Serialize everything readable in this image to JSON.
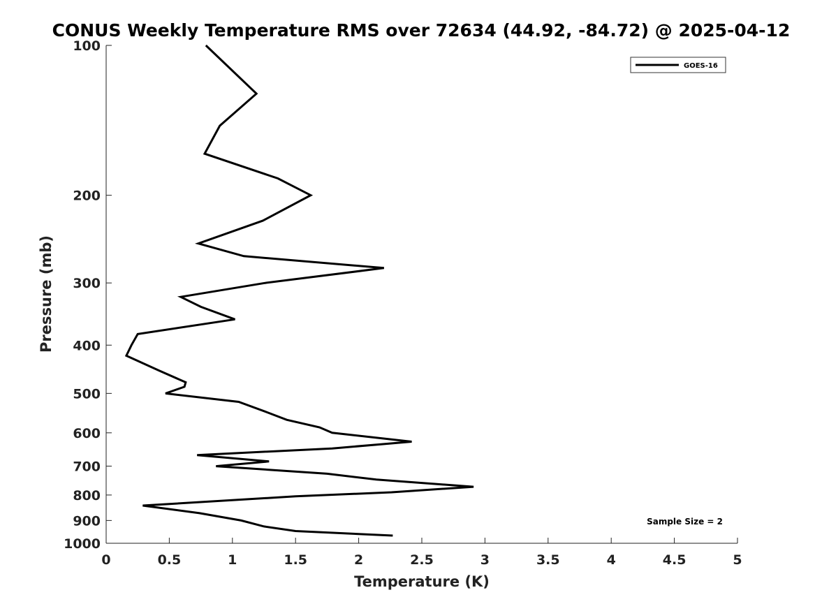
{
  "chart_data": {
    "type": "line",
    "title": "CONUS Weekly Temperature RMS over 72634 (44.92, -84.72) @ 2025-04-12",
    "xlabel": "Temperature (K)",
    "ylabel": "Pressure (mb)",
    "xlim": [
      0,
      5
    ],
    "ylim": [
      100,
      1000
    ],
    "y_scale": "log",
    "y_reversed": true,
    "x_ticks": [
      0,
      0.5,
      1,
      1.5,
      2,
      2.5,
      3,
      3.5,
      4,
      4.5,
      5
    ],
    "x_tick_labels": [
      "0",
      "0.5",
      "1",
      "1.5",
      "2",
      "2.5",
      "3",
      "3.5",
      "4",
      "4.5",
      "5"
    ],
    "y_ticks": [
      100,
      200,
      300,
      400,
      500,
      600,
      700,
      800,
      900,
      1000
    ],
    "y_tick_labels": [
      "100",
      "200",
      "300",
      "400",
      "500",
      "600",
      "700",
      "800",
      "900",
      "1000"
    ],
    "grid": false,
    "legend_position": "top-right",
    "annotation": "Sample Size = 2",
    "series": [
      {
        "name": "GOES-16",
        "color": "#000000",
        "x": [
          0.79,
          1.19,
          0.9,
          0.78,
          1.36,
          1.62,
          1.24,
          0.73,
          1.09,
          2.2,
          1.26,
          0.59,
          0.75,
          1.02,
          0.25,
          0.2,
          0.16,
          0.42,
          0.63,
          0.62,
          0.47,
          1.05,
          1.27,
          1.43,
          1.69,
          1.79,
          2.42,
          1.79,
          0.72,
          1.29,
          0.87,
          1.75,
          2.14,
          2.91,
          2.26,
          1.5,
          0.29,
          0.74,
          1.07,
          1.25,
          1.5,
          2.27
        ],
        "y": [
          100,
          125,
          145,
          165,
          185,
          200,
          225,
          250,
          265,
          280,
          300,
          320,
          335,
          355,
          380,
          400,
          420,
          450,
          475,
          485,
          500,
          520,
          545,
          565,
          585,
          600,
          625,
          645,
          665,
          685,
          700,
          725,
          745,
          770,
          790,
          805,
          840,
          870,
          900,
          925,
          945,
          965
        ]
      }
    ]
  }
}
